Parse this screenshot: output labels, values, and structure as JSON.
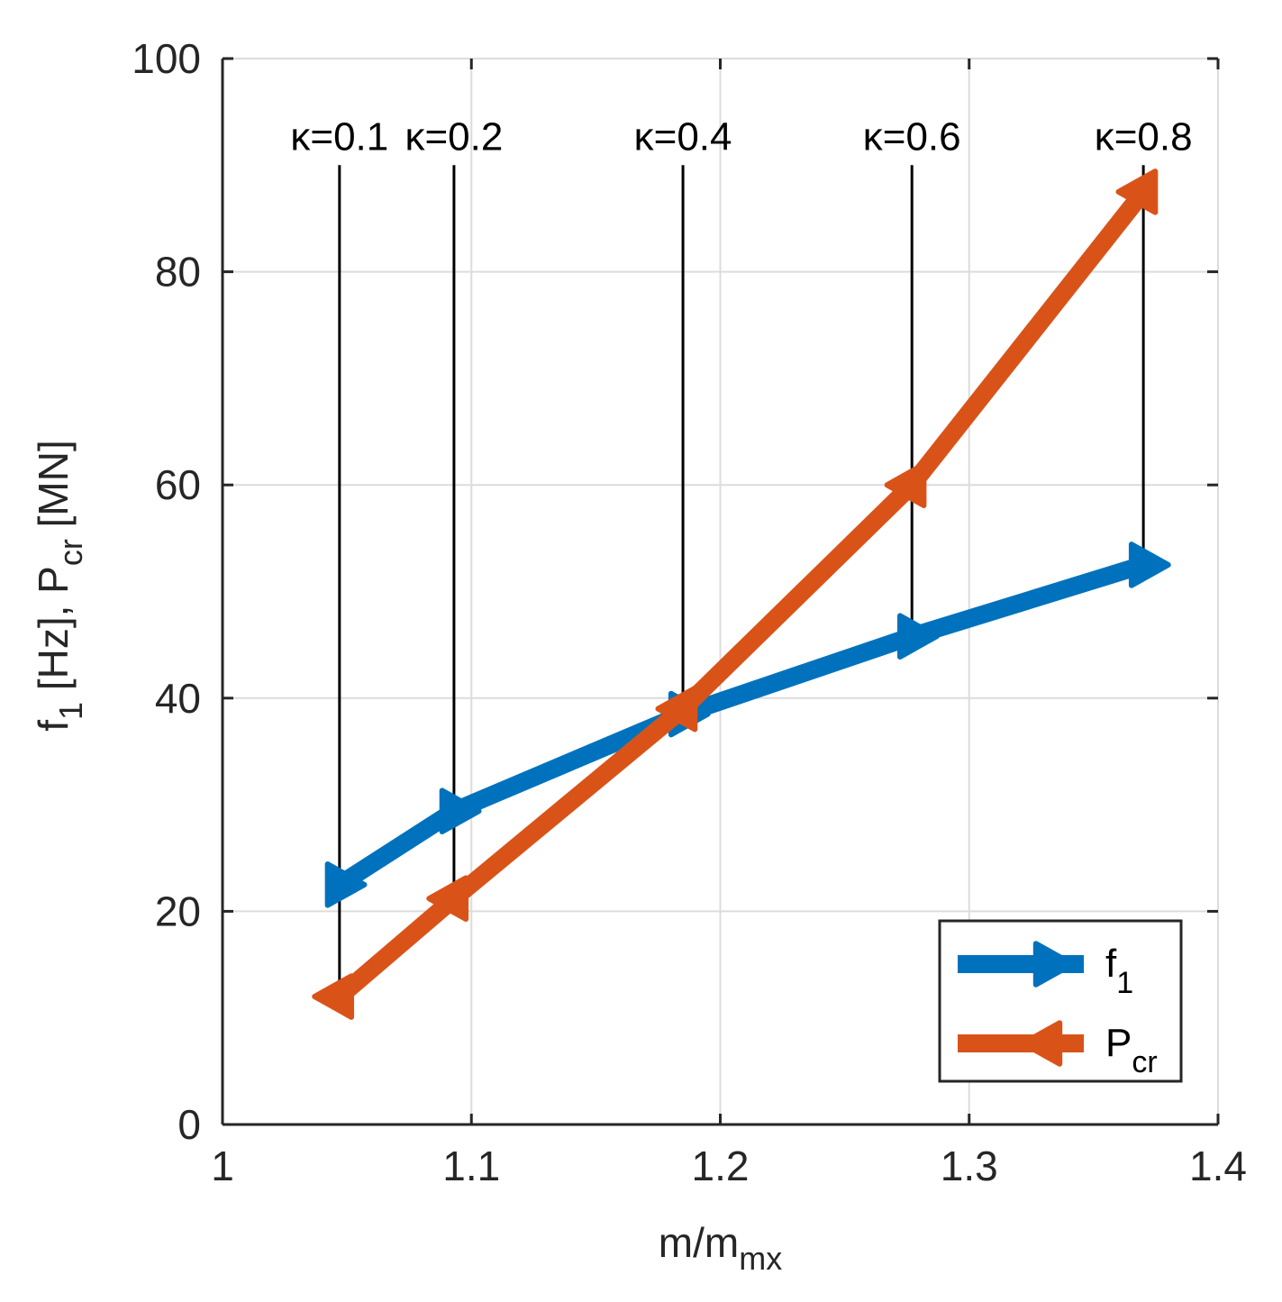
{
  "chart_data": {
    "type": "line",
    "title": "",
    "xlabel": {
      "main": "m/m",
      "sub": "mx"
    },
    "ylabel": {
      "part1": "f",
      "part1_sub": "1",
      "part2": " [Hz],   P",
      "part2_sub": "cr",
      "part3": " [MN]"
    },
    "xlim": [
      1,
      1.4
    ],
    "ylim": [
      0,
      100
    ],
    "xticks": [
      1,
      1.1,
      1.2,
      1.3,
      1.4
    ],
    "xtick_labels": [
      "1",
      "1.1",
      "1.2",
      "1.3",
      "1.4"
    ],
    "yticks": [
      0,
      20,
      40,
      60,
      80,
      100
    ],
    "ytick_labels": [
      "0",
      "20",
      "40",
      "60",
      "80",
      "100"
    ],
    "grid": true,
    "legend_position": "bottom-right",
    "x": [
      1.047,
      1.093,
      1.185,
      1.277,
      1.37
    ],
    "series": [
      {
        "name": "f",
        "name_sub": "1",
        "values": [
          22.5,
          29.4,
          38.5,
          45.8,
          52.5
        ],
        "color": "#0072BD",
        "marker": "triangle-right"
      },
      {
        "name": "P",
        "name_sub": "cr",
        "values": [
          12.0,
          21.2,
          39.0,
          60.0,
          87.5
        ],
        "color": "#D95319",
        "marker": "triangle-left"
      }
    ],
    "annotations": [
      {
        "label": "κ=0.1",
        "x": 1.047,
        "y_top": 90,
        "y_bottom": 12.0
      },
      {
        "label": "κ=0.2",
        "x": 1.093,
        "y_top": 90,
        "y_bottom": 21.2
      },
      {
        "label": "κ=0.4",
        "x": 1.185,
        "y_top": 90,
        "y_bottom": 38.5
      },
      {
        "label": "κ=0.6",
        "x": 1.277,
        "y_top": 90,
        "y_bottom": 45.8
      },
      {
        "label": "κ=0.8",
        "x": 1.37,
        "y_top": 90,
        "y_bottom": 52.5
      }
    ]
  }
}
